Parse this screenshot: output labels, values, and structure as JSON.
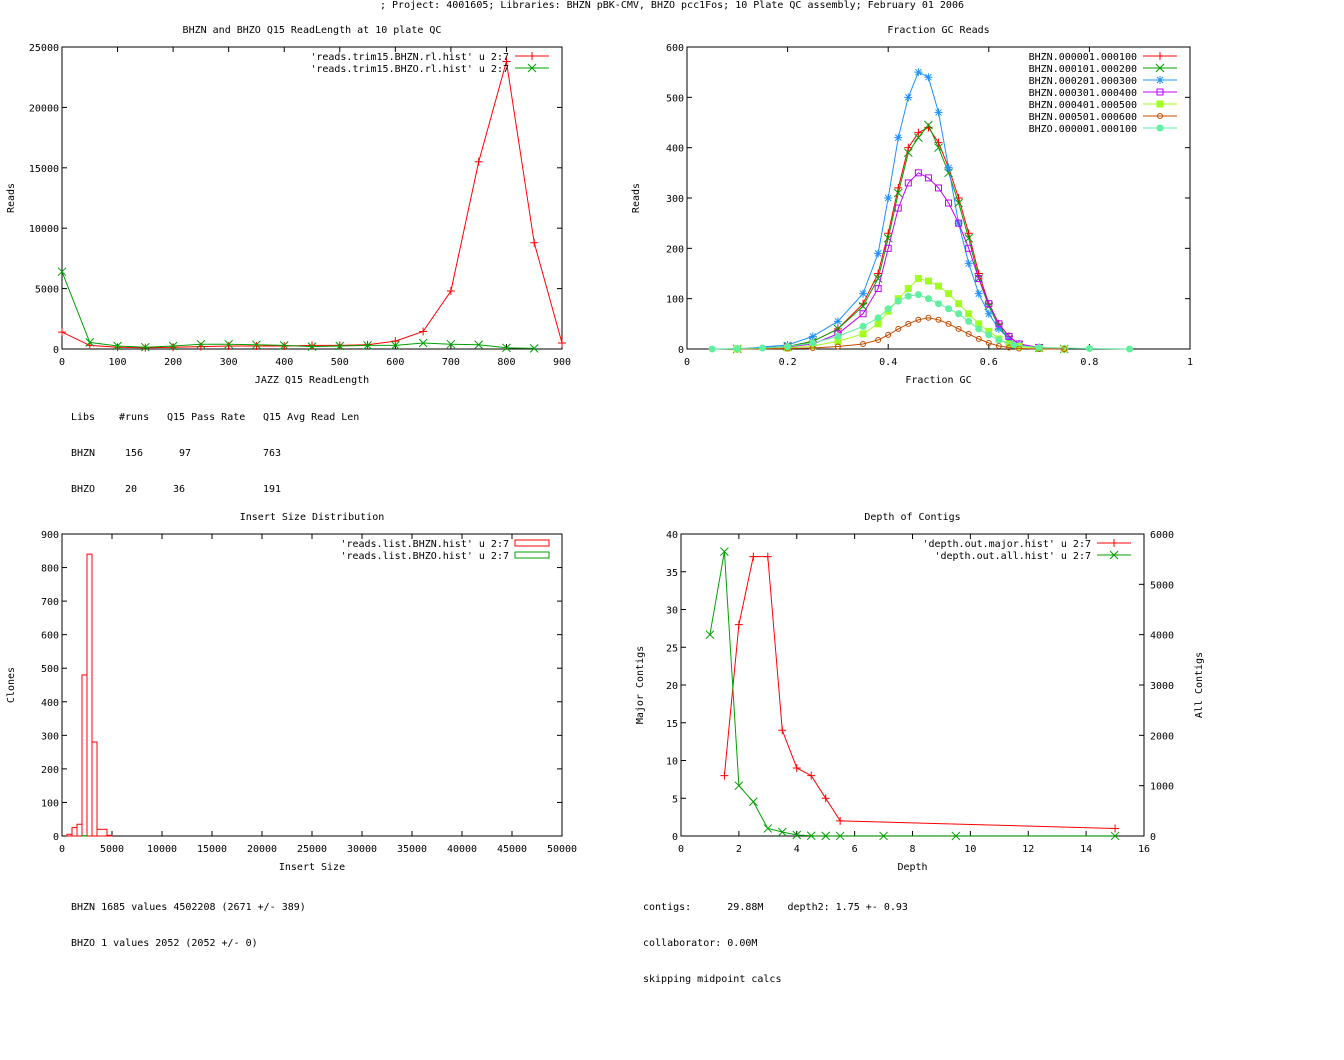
{
  "page": {
    "title": "; Project: 4001605; Libraries: BHZN pBK-CMV, BHZO pcc1Fos; 10 Plate QC assembly; February 01 2006"
  },
  "colors": {
    "red": "#ff0000",
    "green": "#00a000",
    "blue": "#1e90ff",
    "magenta": "#c000ff",
    "lime": "#a0ff20",
    "brown": "#c04a00",
    "mint": "#60f0a0"
  },
  "stats": {
    "readlength": [
      {
        "lib": "Libs",
        "runs": "#runs",
        "pass": "Q15 Pass Rate",
        "avg": "Q15 Avg Read Len"
      },
      {
        "lib": "BHZN",
        "runs": "156",
        "pass": "97",
        "avg": "763"
      },
      {
        "lib": "BHZO",
        "runs": "20",
        "pass": "36",
        "avg": "191"
      }
    ],
    "insert": [
      "BHZN 1685 values 4502208 (2671 +/- 389)",
      "BHZO 1 values 2052 (2052 +/- 0)"
    ],
    "depth": [
      "contigs:      29.88M    depth2: 1.75 +- 0.93",
      "collaborator: 0.00M",
      "skipping midpoint calcs"
    ]
  },
  "chart_data": [
    {
      "id": "readlength",
      "type": "line",
      "title": "BHZN and BHZO Q15 ReadLength at 10 plate QC",
      "xlabel": "JAZZ Q15 ReadLength",
      "ylabel": "Reads",
      "xlim": [
        0,
        900
      ],
      "ylim": [
        0,
        25000
      ],
      "xticks": [
        0,
        100,
        200,
        300,
        400,
        500,
        600,
        700,
        800,
        900
      ],
      "yticks": [
        0,
        5000,
        10000,
        15000,
        20000,
        25000
      ],
      "legend_position": "top-right",
      "series": [
        {
          "name": "'reads.trim15.BHZN.rl.hist' u 2:7",
          "color": "#ff0000",
          "marker": "plus",
          "x": [
            0,
            50,
            100,
            150,
            200,
            250,
            300,
            350,
            400,
            450,
            500,
            550,
            600,
            650,
            700,
            750,
            800,
            850,
            900
          ],
          "y": [
            1400,
            300,
            150,
            100,
            150,
            200,
            250,
            250,
            250,
            300,
            300,
            350,
            650,
            1450,
            4800,
            15500,
            23800,
            8800,
            500
          ]
        },
        {
          "name": "'reads.trim15.BHZO.rl.hist' u 2:7",
          "color": "#00a000",
          "marker": "cross",
          "x": [
            0,
            50,
            100,
            150,
            200,
            250,
            300,
            350,
            400,
            450,
            500,
            550,
            600,
            650,
            700,
            750,
            800,
            850
          ],
          "y": [
            6400,
            550,
            250,
            150,
            250,
            400,
            400,
            350,
            300,
            200,
            250,
            300,
            300,
            500,
            400,
            350,
            100,
            50
          ]
        }
      ]
    },
    {
      "id": "gc",
      "type": "line",
      "title": "Fraction GC Reads",
      "xlabel": "Fraction GC",
      "ylabel": "Reads",
      "xlim": [
        0,
        1
      ],
      "ylim": [
        0,
        600
      ],
      "xticks": [
        0,
        0.2,
        0.4,
        0.6,
        0.8,
        1
      ],
      "yticks": [
        0,
        100,
        200,
        300,
        400,
        500,
        600
      ],
      "legend_position": "top-right",
      "series": [
        {
          "name": "BHZN.000001.000100",
          "color": "#ff0000",
          "marker": "plus",
          "x": [
            0.1,
            0.2,
            0.25,
            0.3,
            0.35,
            0.38,
            0.4,
            0.42,
            0.44,
            0.46,
            0.48,
            0.5,
            0.52,
            0.54,
            0.56,
            0.58,
            0.6,
            0.62,
            0.64,
            0.66,
            0.7,
            0.75
          ],
          "y": [
            0,
            5,
            15,
            40,
            90,
            150,
            230,
            320,
            400,
            430,
            440,
            410,
            360,
            300,
            230,
            150,
            90,
            50,
            25,
            10,
            3,
            0
          ]
        },
        {
          "name": "BHZN.000101.000200",
          "color": "#00a000",
          "marker": "cross",
          "x": [
            0.1,
            0.2,
            0.25,
            0.3,
            0.35,
            0.38,
            0.4,
            0.42,
            0.44,
            0.46,
            0.48,
            0.5,
            0.52,
            0.54,
            0.56,
            0.58,
            0.6,
            0.62,
            0.64,
            0.66,
            0.7,
            0.75
          ],
          "y": [
            0,
            5,
            15,
            40,
            85,
            140,
            220,
            310,
            390,
            420,
            445,
            400,
            350,
            290,
            220,
            140,
            85,
            45,
            20,
            8,
            2,
            0
          ]
        },
        {
          "name": "BHZN.000201.000300",
          "color": "#1e90ff",
          "marker": "star",
          "x": [
            0.1,
            0.2,
            0.25,
            0.3,
            0.35,
            0.38,
            0.4,
            0.42,
            0.44,
            0.46,
            0.48,
            0.5,
            0.52,
            0.54,
            0.56,
            0.58,
            0.6,
            0.62,
            0.64,
            0.66,
            0.7,
            0.75
          ],
          "y": [
            0,
            8,
            25,
            55,
            110,
            190,
            300,
            420,
            500,
            550,
            540,
            470,
            360,
            250,
            170,
            110,
            70,
            40,
            20,
            8,
            3,
            0
          ]
        },
        {
          "name": "BHZN.000301.000400",
          "color": "#c000ff",
          "marker": "box",
          "x": [
            0.1,
            0.2,
            0.25,
            0.3,
            0.35,
            0.38,
            0.4,
            0.42,
            0.44,
            0.46,
            0.48,
            0.5,
            0.52,
            0.54,
            0.56,
            0.58,
            0.6,
            0.62,
            0.64,
            0.66,
            0.7,
            0.75
          ],
          "y": [
            0,
            4,
            10,
            30,
            70,
            120,
            200,
            280,
            330,
            350,
            340,
            320,
            290,
            250,
            200,
            140,
            90,
            50,
            25,
            10,
            3,
            0
          ]
        },
        {
          "name": "BHZN.000401.000500",
          "color": "#a0ff20",
          "marker": "fbox",
          "x": [
            0.1,
            0.2,
            0.25,
            0.3,
            0.35,
            0.38,
            0.4,
            0.42,
            0.44,
            0.46,
            0.48,
            0.5,
            0.52,
            0.54,
            0.56,
            0.58,
            0.6,
            0.62,
            0.64,
            0.66,
            0.7,
            0.75
          ],
          "y": [
            0,
            2,
            6,
            15,
            30,
            50,
            75,
            100,
            120,
            140,
            135,
            125,
            110,
            90,
            70,
            50,
            35,
            20,
            10,
            5,
            1,
            0
          ]
        },
        {
          "name": "BHZN.000501.000600",
          "color": "#c04a00",
          "marker": "circle",
          "x": [
            0.1,
            0.2,
            0.25,
            0.3,
            0.35,
            0.38,
            0.4,
            0.42,
            0.44,
            0.46,
            0.48,
            0.5,
            0.52,
            0.54,
            0.56,
            0.58,
            0.6,
            0.62,
            0.64,
            0.66,
            0.7,
            0.75
          ],
          "y": [
            0,
            1,
            2,
            5,
            10,
            18,
            28,
            40,
            50,
            58,
            62,
            58,
            50,
            40,
            30,
            20,
            12,
            6,
            3,
            1,
            0,
            0
          ]
        },
        {
          "name": "BHZO.000001.000100",
          "color": "#60f0a0",
          "marker": "fcircle",
          "x": [
            0.05,
            0.1,
            0.15,
            0.2,
            0.25,
            0.3,
            0.35,
            0.38,
            0.4,
            0.42,
            0.44,
            0.46,
            0.48,
            0.5,
            0.52,
            0.54,
            0.56,
            0.58,
            0.6,
            0.62,
            0.65,
            0.7,
            0.8,
            0.88
          ],
          "y": [
            0,
            1,
            2,
            5,
            12,
            25,
            45,
            62,
            80,
            95,
            105,
            108,
            100,
            90,
            80,
            70,
            55,
            40,
            28,
            18,
            8,
            3,
            1,
            0
          ]
        }
      ]
    },
    {
      "id": "insert",
      "type": "bar",
      "title": "Insert Size Distribution",
      "xlabel": "Insert Size",
      "ylabel": "Clones",
      "xlim": [
        0,
        50000
      ],
      "ylim": [
        0,
        900
      ],
      "xticks": [
        0,
        5000,
        10000,
        15000,
        20000,
        25000,
        30000,
        35000,
        40000,
        45000,
        50000
      ],
      "yticks": [
        0,
        100,
        200,
        300,
        400,
        500,
        600,
        700,
        800,
        900
      ],
      "legend_position": "top-right",
      "series": [
        {
          "name": "'reads.list.BHZN.hist' u 2:7",
          "color": "#ff0000",
          "bins": [
            [
              500,
              1000,
              5
            ],
            [
              1000,
              1500,
              25
            ],
            [
              1500,
              2000,
              35
            ],
            [
              2000,
              2500,
              480
            ],
            [
              2500,
              3000,
              840
            ],
            [
              3000,
              3500,
              280
            ],
            [
              3500,
              4500,
              20
            ],
            [
              4500,
              5000,
              2
            ]
          ]
        },
        {
          "name": "'reads.list.BHZO.hist' u 2:7",
          "color": "#00a000",
          "bins": [
            [
              2000,
              2500,
              1
            ]
          ]
        }
      ]
    },
    {
      "id": "depth",
      "type": "line",
      "title": "Depth of Contigs",
      "xlabel": "Depth",
      "ylabel": "Major Contigs",
      "y2label": "All Contigs",
      "xlim": [
        0,
        16
      ],
      "ylim": [
        0,
        40
      ],
      "y2lim": [
        0,
        6000
      ],
      "xticks": [
        0,
        2,
        4,
        6,
        8,
        10,
        12,
        14,
        16
      ],
      "yticks": [
        0,
        5,
        10,
        15,
        20,
        25,
        30,
        35,
        40
      ],
      "y2ticks": [
        0,
        1000,
        2000,
        3000,
        4000,
        5000,
        6000
      ],
      "legend_position": "top-right",
      "series": [
        {
          "name": "'depth.out.major.hist' u 2:7",
          "color": "#ff0000",
          "marker": "plus",
          "axis": "y1",
          "x": [
            1.5,
            2,
            2.5,
            3,
            3.5,
            4,
            4.5,
            5,
            5.5,
            15
          ],
          "y": [
            8,
            28,
            37,
            37,
            14,
            9,
            8,
            5,
            2,
            1
          ]
        },
        {
          "name": "'depth.out.all.hist' u 2:7",
          "color": "#00a000",
          "marker": "cross",
          "axis": "y2",
          "x": [
            1,
            1.5,
            2,
            2.5,
            3,
            3.5,
            4,
            4.5,
            5,
            5.5,
            7,
            9.5,
            15
          ],
          "y": [
            4000,
            5650,
            1000,
            680,
            150,
            80,
            20,
            5,
            2,
            1,
            1,
            1,
            1
          ]
        }
      ]
    }
  ]
}
